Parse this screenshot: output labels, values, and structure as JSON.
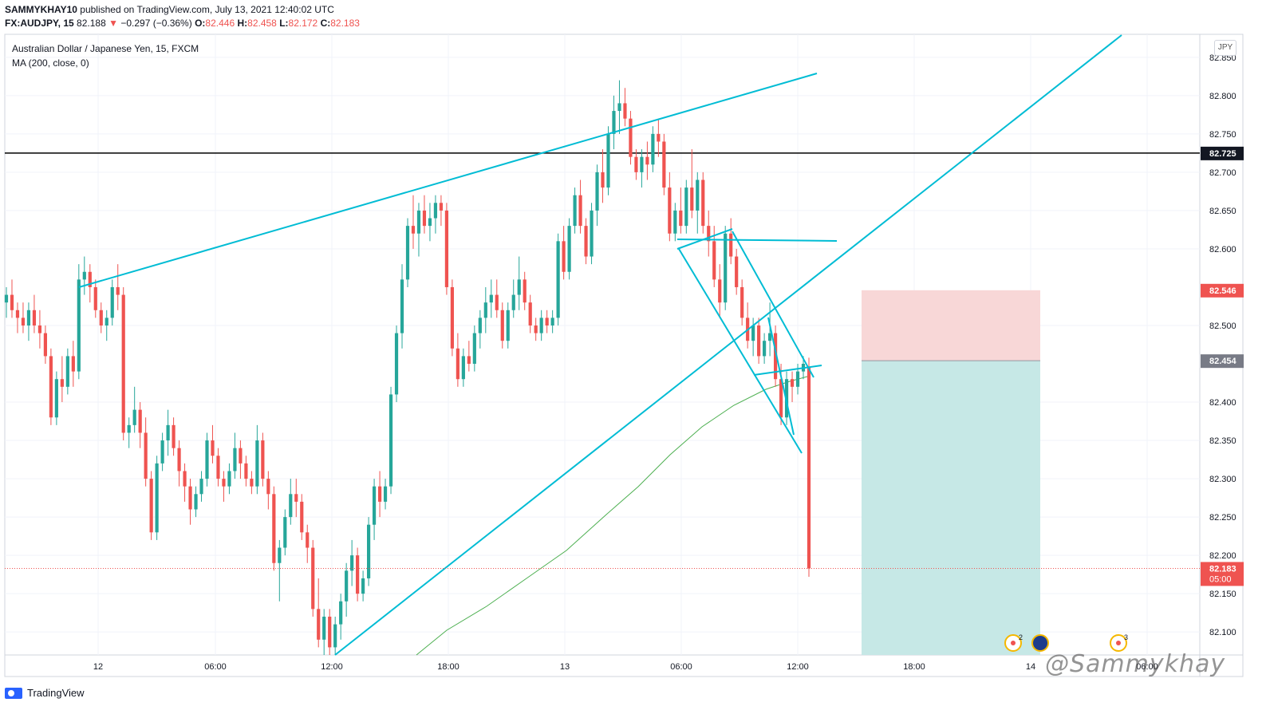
{
  "header": {
    "author": "SAMMYKHAY10",
    "published_text": "published on TradingView.com, July 13, 2021 12:40:02 UTC",
    "symbol": "FX:AUDJPY, 15",
    "last": "82.188",
    "change_arrow": "▼",
    "change": "−0.297 (−0.36%)",
    "o_label": "O:",
    "o_value": "82.446",
    "h_label": "H:",
    "h_value": "82.458",
    "l_label": "L:",
    "l_value": "82.172",
    "c_label": "C:",
    "c_value": "82.183"
  },
  "legend": {
    "title": "Australian Dollar / Japanese Yen, 15, FXCM",
    "indicator": "MA (200, close, 0)"
  },
  "currency_badge": "JPY",
  "footer": {
    "brand": "TradingView"
  },
  "watermark": "@Sammykhay",
  "colors": {
    "up": "#26a69a",
    "down": "#ef5350",
    "trendline": "#00bcd4",
    "ma": "#4caf50",
    "stop_zone": "#f8d7d7",
    "target_zone": "#c6e8e6",
    "hline": "#000000"
  },
  "chart_data": {
    "type": "candlestick",
    "symbol": "AUDJPY",
    "timeframe": "15",
    "ylim": [
      82.07,
      82.88
    ],
    "y_ticks": [
      "82.850",
      "82.800",
      "82.750",
      "82.700",
      "82.650",
      "82.600",
      "82.500",
      "82.400",
      "82.350",
      "82.300",
      "82.250",
      "82.200",
      "82.150",
      "82.100"
    ],
    "x_ticks": [
      "12",
      "06:00",
      "12:00",
      "18:00",
      "13",
      "06:00",
      "12:00",
      "18:00",
      "14",
      "06:00"
    ],
    "price_labels": [
      {
        "value": "82.725",
        "style": "horizontal-line"
      },
      {
        "value": "82.546",
        "style": "stop"
      },
      {
        "value": "82.454",
        "style": "entry"
      },
      {
        "value": "82.183",
        "style": "last",
        "countdown": "05:00"
      }
    ],
    "candles": [
      [
        82.53,
        82.55,
        82.51,
        82.54
      ],
      [
        82.54,
        82.56,
        82.51,
        82.52
      ],
      [
        82.52,
        82.53,
        82.49,
        82.51
      ],
      [
        82.51,
        82.53,
        82.49,
        82.5
      ],
      [
        82.5,
        82.53,
        82.48,
        82.52
      ],
      [
        82.52,
        82.54,
        82.49,
        82.5
      ],
      [
        82.5,
        82.52,
        82.47,
        82.49
      ],
      [
        82.49,
        82.5,
        82.45,
        82.46
      ],
      [
        82.46,
        82.47,
        82.37,
        82.38
      ],
      [
        82.38,
        82.44,
        82.37,
        82.43
      ],
      [
        82.43,
        82.46,
        82.4,
        82.42
      ],
      [
        82.42,
        82.47,
        82.41,
        82.46
      ],
      [
        82.46,
        82.48,
        82.42,
        82.44
      ],
      [
        82.44,
        82.58,
        82.43,
        82.56
      ],
      [
        82.56,
        82.59,
        82.54,
        82.57
      ],
      [
        82.57,
        82.58,
        82.53,
        82.55
      ],
      [
        82.55,
        82.56,
        82.51,
        82.52
      ],
      [
        82.52,
        82.53,
        82.49,
        82.5
      ],
      [
        82.5,
        82.52,
        82.48,
        82.51
      ],
      [
        82.51,
        82.56,
        82.5,
        82.55
      ],
      [
        82.55,
        82.58,
        82.52,
        82.54
      ],
      [
        82.54,
        82.55,
        82.35,
        82.36
      ],
      [
        82.36,
        82.38,
        82.34,
        82.37
      ],
      [
        82.37,
        82.42,
        82.36,
        82.39
      ],
      [
        82.39,
        82.4,
        82.34,
        82.36
      ],
      [
        82.36,
        82.38,
        82.29,
        82.3
      ],
      [
        82.3,
        82.31,
        82.22,
        82.23
      ],
      [
        82.23,
        82.33,
        82.22,
        82.32
      ],
      [
        82.32,
        82.36,
        82.31,
        82.35
      ],
      [
        82.35,
        82.39,
        82.33,
        82.37
      ],
      [
        82.37,
        82.38,
        82.33,
        82.34
      ],
      [
        82.34,
        82.35,
        82.29,
        82.31
      ],
      [
        82.31,
        82.32,
        82.27,
        82.29
      ],
      [
        82.29,
        82.3,
        82.24,
        82.26
      ],
      [
        82.26,
        82.29,
        82.25,
        82.28
      ],
      [
        82.28,
        82.31,
        82.27,
        82.3
      ],
      [
        82.3,
        82.36,
        82.29,
        82.35
      ],
      [
        82.35,
        82.37,
        82.32,
        82.33
      ],
      [
        82.33,
        82.34,
        82.29,
        82.3
      ],
      [
        82.3,
        82.31,
        82.27,
        82.29
      ],
      [
        82.29,
        82.32,
        82.28,
        82.31
      ],
      [
        82.31,
        82.36,
        82.3,
        82.34
      ],
      [
        82.34,
        82.35,
        82.3,
        82.32
      ],
      [
        82.32,
        82.33,
        82.29,
        82.3
      ],
      [
        82.3,
        82.31,
        82.28,
        82.29
      ],
      [
        82.29,
        82.37,
        82.28,
        82.35
      ],
      [
        82.35,
        82.36,
        82.29,
        82.3
      ],
      [
        82.3,
        82.31,
        82.26,
        82.28
      ],
      [
        82.28,
        82.29,
        82.18,
        82.19
      ],
      [
        82.19,
        82.22,
        82.14,
        82.21
      ],
      [
        82.21,
        82.26,
        82.2,
        82.25
      ],
      [
        82.25,
        82.3,
        82.24,
        82.28
      ],
      [
        82.28,
        82.3,
        82.25,
        82.27
      ],
      [
        82.27,
        82.28,
        82.22,
        82.23
      ],
      [
        82.23,
        82.24,
        82.19,
        82.21
      ],
      [
        82.21,
        82.22,
        82.12,
        82.13
      ],
      [
        82.13,
        82.17,
        82.08,
        82.09
      ],
      [
        82.09,
        82.13,
        82.07,
        82.12
      ],
      [
        82.12,
        82.13,
        82.07,
        82.08
      ],
      [
        82.08,
        82.12,
        82.07,
        82.11
      ],
      [
        82.11,
        82.15,
        82.09,
        82.14
      ],
      [
        82.14,
        82.19,
        82.12,
        82.18
      ],
      [
        82.18,
        82.22,
        82.16,
        82.2
      ],
      [
        82.2,
        82.21,
        82.14,
        82.15
      ],
      [
        82.15,
        82.18,
        82.14,
        82.17
      ],
      [
        82.17,
        82.25,
        82.16,
        82.24
      ],
      [
        82.24,
        82.3,
        82.22,
        82.29
      ],
      [
        82.29,
        82.31,
        82.25,
        82.27
      ],
      [
        82.27,
        82.3,
        82.26,
        82.29
      ],
      [
        82.29,
        82.42,
        82.28,
        82.41
      ],
      [
        82.41,
        82.5,
        82.4,
        82.49
      ],
      [
        82.49,
        82.58,
        82.47,
        82.56
      ],
      [
        82.56,
        82.64,
        82.55,
        82.63
      ],
      [
        82.63,
        82.67,
        82.6,
        82.62
      ],
      [
        82.62,
        82.66,
        82.59,
        82.65
      ],
      [
        82.65,
        82.67,
        82.62,
        82.63
      ],
      [
        82.63,
        82.66,
        82.61,
        82.64
      ],
      [
        82.64,
        82.67,
        82.62,
        82.66
      ],
      [
        82.66,
        82.67,
        82.63,
        82.65
      ],
      [
        82.65,
        82.66,
        82.54,
        82.55
      ],
      [
        82.55,
        82.56,
        82.46,
        82.47
      ],
      [
        82.47,
        82.49,
        82.42,
        82.43
      ],
      [
        82.43,
        82.47,
        82.42,
        82.46
      ],
      [
        82.46,
        82.48,
        82.44,
        82.45
      ],
      [
        82.45,
        82.5,
        82.44,
        82.49
      ],
      [
        82.49,
        82.52,
        82.47,
        82.51
      ],
      [
        82.51,
        82.55,
        82.49,
        82.53
      ],
      [
        82.53,
        82.56,
        82.51,
        82.54
      ],
      [
        82.54,
        82.56,
        82.51,
        82.52
      ],
      [
        82.52,
        82.53,
        82.47,
        82.48
      ],
      [
        82.48,
        82.53,
        82.47,
        82.52
      ],
      [
        82.52,
        82.56,
        82.51,
        82.54
      ],
      [
        82.54,
        82.59,
        82.52,
        82.56
      ],
      [
        82.56,
        82.57,
        82.52,
        82.53
      ],
      [
        82.53,
        82.54,
        82.49,
        82.5
      ],
      [
        82.5,
        82.51,
        82.48,
        82.49
      ],
      [
        82.49,
        82.52,
        82.48,
        82.51
      ],
      [
        82.51,
        82.52,
        82.49,
        82.5
      ],
      [
        82.5,
        82.52,
        82.49,
        82.51
      ],
      [
        82.51,
        82.62,
        82.5,
        82.61
      ],
      [
        82.61,
        82.63,
        82.56,
        82.57
      ],
      [
        82.57,
        82.64,
        82.56,
        82.63
      ],
      [
        82.63,
        82.68,
        82.62,
        82.67
      ],
      [
        82.67,
        82.69,
        82.62,
        82.63
      ],
      [
        82.63,
        82.64,
        82.58,
        82.59
      ],
      [
        82.59,
        82.66,
        82.58,
        82.65
      ],
      [
        82.65,
        82.71,
        82.63,
        82.7
      ],
      [
        82.7,
        82.73,
        82.66,
        82.68
      ],
      [
        82.68,
        82.76,
        82.67,
        82.75
      ],
      [
        82.75,
        82.8,
        82.73,
        82.78
      ],
      [
        82.78,
        82.82,
        82.75,
        82.79
      ],
      [
        82.79,
        82.81,
        82.76,
        82.77
      ],
      [
        82.77,
        82.78,
        82.71,
        82.72
      ],
      [
        82.72,
        82.73,
        82.69,
        82.7
      ],
      [
        82.7,
        82.73,
        82.68,
        82.72
      ],
      [
        82.72,
        82.74,
        82.69,
        82.71
      ],
      [
        82.71,
        82.76,
        82.7,
        82.75
      ],
      [
        82.75,
        82.77,
        82.72,
        82.74
      ],
      [
        82.74,
        82.75,
        82.67,
        82.68
      ],
      [
        82.68,
        82.7,
        82.61,
        82.62
      ],
      [
        82.62,
        82.66,
        82.61,
        82.65
      ],
      [
        82.65,
        82.68,
        82.62,
        82.63
      ],
      [
        82.63,
        82.69,
        82.62,
        82.68
      ],
      [
        82.68,
        82.73,
        82.64,
        82.65
      ],
      [
        82.65,
        82.7,
        82.62,
        82.69
      ],
      [
        82.69,
        82.7,
        82.62,
        82.63
      ],
      [
        82.63,
        82.65,
        82.59,
        82.61
      ],
      [
        82.61,
        82.63,
        82.55,
        82.56
      ],
      [
        82.56,
        82.58,
        82.51,
        82.53
      ],
      [
        82.53,
        82.63,
        82.52,
        82.62
      ],
      [
        82.62,
        82.64,
        82.58,
        82.59
      ],
      [
        82.59,
        82.6,
        82.54,
        82.55
      ],
      [
        82.55,
        82.56,
        82.5,
        82.51
      ],
      [
        82.51,
        82.53,
        82.47,
        82.48
      ],
      [
        82.48,
        82.51,
        82.46,
        82.5
      ],
      [
        82.5,
        82.51,
        82.45,
        82.46
      ],
      [
        82.46,
        82.49,
        82.45,
        82.48
      ],
      [
        82.48,
        82.53,
        82.46,
        82.49
      ],
      [
        82.49,
        82.5,
        82.42,
        82.43
      ],
      [
        82.43,
        82.45,
        82.37,
        82.38
      ],
      [
        82.38,
        82.44,
        82.37,
        82.43
      ],
      [
        82.43,
        82.44,
        82.4,
        82.42
      ],
      [
        82.42,
        82.45,
        82.41,
        82.44
      ],
      [
        82.44,
        82.46,
        82.43,
        82.45
      ],
      [
        82.446,
        82.458,
        82.172,
        82.183
      ]
    ],
    "ma200_label": "MA (200, close, 0)"
  }
}
